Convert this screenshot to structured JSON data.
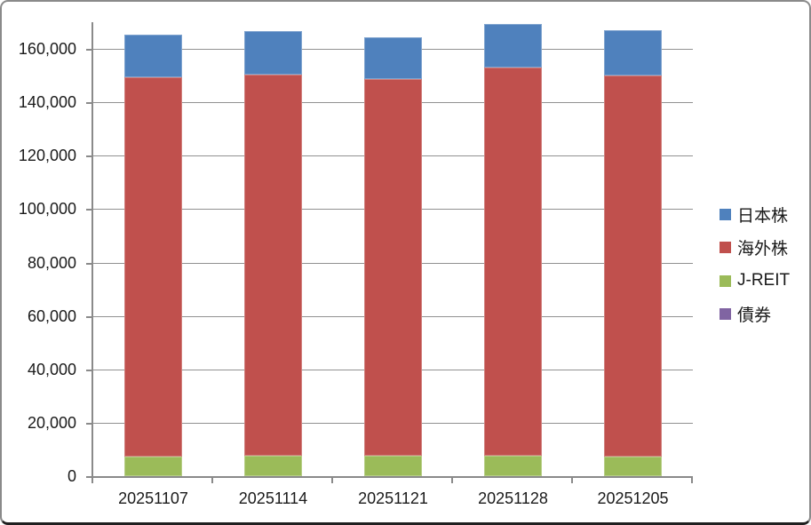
{
  "chart_data": {
    "type": "bar",
    "stacked": true,
    "title": "",
    "xlabel": "",
    "ylabel": "",
    "categories": [
      "20251107",
      "20251114",
      "20251121",
      "20251128",
      "20251205"
    ],
    "series": [
      {
        "name": "日本株",
        "color": "#4F81BD",
        "values": [
          15900,
          16200,
          15800,
          16300,
          16700
        ]
      },
      {
        "name": "海外株",
        "color": "#C0504D",
        "values": [
          141900,
          142900,
          141100,
          145500,
          142800
        ]
      },
      {
        "name": "J-REIT",
        "color": "#9BBB59",
        "values": [
          7400,
          7500,
          7500,
          7500,
          7400
        ]
      },
      {
        "name": "債券",
        "color": "#8064A2",
        "values": [
          0,
          0,
          0,
          0,
          0
        ]
      }
    ],
    "stack_bottom_to_top": [
      "債券",
      "J-REIT",
      "海外株",
      "日本株"
    ],
    "ylim": [
      0,
      170000
    ],
    "ytick_values": [
      0,
      20000,
      40000,
      60000,
      80000,
      100000,
      120000,
      140000,
      160000
    ],
    "ytick_labels": [
      "0",
      "20,000",
      "40,000",
      "60,000",
      "80,000",
      "100,000",
      "120,000",
      "140,000",
      "160,000"
    ],
    "grid": true,
    "legend_position": "right",
    "axis_color": "#8a8a8a",
    "gridline_color": "#919191",
    "text_color": "#1a1a1a"
  }
}
